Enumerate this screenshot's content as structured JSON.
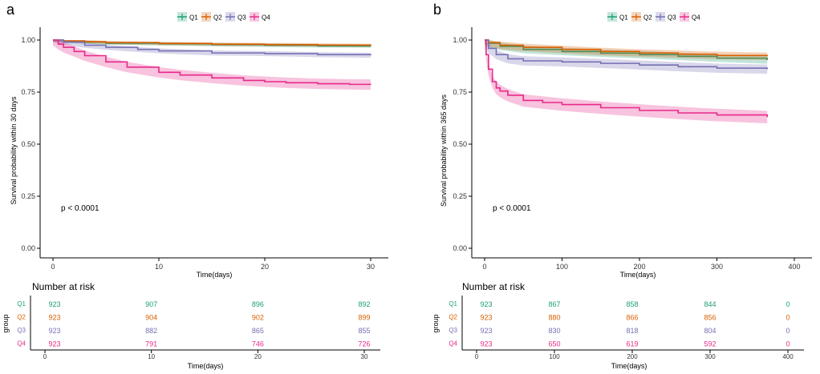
{
  "colors": {
    "Q1": "#1b9e77",
    "Q2": "#d95f02",
    "Q3": "#7570b3",
    "Q4": "#e7298a",
    "axis": "#000000"
  },
  "chart_data": [
    {
      "type": "line",
      "panel_label": "a",
      "title": "",
      "xlabel": "Time(days)",
      "ylabel": "Survival probability within 30 days",
      "xlim": [
        0,
        30
      ],
      "ylim": [
        0,
        1
      ],
      "x_ticks": [
        "0",
        "10",
        "20",
        "30"
      ],
      "y_ticks": [
        "0.00",
        "0.25",
        "0.50",
        "0.75",
        "1.00"
      ],
      "legend": [
        "Q1",
        "Q2",
        "Q3",
        "Q4"
      ],
      "legend_position": "top-center",
      "annotation": "p < 0.0001",
      "series": [
        {
          "name": "Q1",
          "x": [
            0,
            1,
            3,
            5,
            10,
            15,
            20,
            25,
            30
          ],
          "values": [
            1.0,
            0.995,
            0.99,
            0.985,
            0.982,
            0.978,
            0.975,
            0.972,
            0.971
          ],
          "ci": 0.008
        },
        {
          "name": "Q2",
          "x": [
            0,
            1,
            3,
            5,
            10,
            15,
            20,
            25,
            30
          ],
          "values": [
            1.0,
            0.996,
            0.992,
            0.988,
            0.984,
            0.98,
            0.978,
            0.976,
            0.974
          ],
          "ci": 0.008
        },
        {
          "name": "Q3",
          "x": [
            0,
            1,
            3,
            5,
            8,
            10,
            15,
            20,
            25,
            30
          ],
          "values": [
            1.0,
            0.99,
            0.975,
            0.965,
            0.955,
            0.948,
            0.938,
            0.935,
            0.93,
            0.927
          ],
          "ci": 0.012
        },
        {
          "name": "Q4",
          "x": [
            0,
            0.5,
            1,
            2,
            3,
            5,
            7,
            10,
            12,
            15,
            18,
            20,
            22,
            25,
            28,
            30
          ],
          "values": [
            1.0,
            0.98,
            0.965,
            0.945,
            0.925,
            0.895,
            0.87,
            0.845,
            0.832,
            0.818,
            0.806,
            0.8,
            0.795,
            0.79,
            0.787,
            0.786
          ],
          "ci": 0.025
        }
      ],
      "risk_table": {
        "title": "Number at risk",
        "xlabel": "Time(days)",
        "ylabel": "group",
        "times": [
          0,
          10,
          20,
          30
        ],
        "groups": [
          {
            "name": "Q1",
            "counts": [
              "923",
              "907",
              "896",
              "892"
            ]
          },
          {
            "name": "Q2",
            "counts": [
              "923",
              "904",
              "902",
              "899"
            ]
          },
          {
            "name": "Q3",
            "counts": [
              "923",
              "882",
              "865",
              "855"
            ]
          },
          {
            "name": "Q4",
            "counts": [
              "923",
              "791",
              "746",
              "726"
            ]
          }
        ],
        "x_ticks": [
          "0",
          "10",
          "20",
          "30"
        ]
      }
    },
    {
      "type": "line",
      "panel_label": "b",
      "title": "",
      "xlabel": "Time(days)",
      "ylabel": "Survival probability within 365 days",
      "xlim": [
        0,
        400
      ],
      "ylim": [
        0,
        1
      ],
      "x_ticks": [
        "0",
        "100",
        "200",
        "300",
        "400"
      ],
      "y_ticks": [
        "0.00",
        "0.25",
        "0.50",
        "0.75",
        "1.00"
      ],
      "legend": [
        "Q1",
        "Q2",
        "Q3",
        "Q4"
      ],
      "legend_position": "top-center",
      "annotation": "p < 0.0001",
      "series": [
        {
          "name": "Q1",
          "x": [
            0,
            5,
            20,
            50,
            100,
            150,
            200,
            250,
            300,
            365
          ],
          "values": [
            1.0,
            0.985,
            0.97,
            0.955,
            0.945,
            0.937,
            0.93,
            0.922,
            0.913,
            0.904
          ],
          "ci": 0.018
        },
        {
          "name": "Q2",
          "x": [
            0,
            5,
            20,
            50,
            100,
            150,
            200,
            250,
            300,
            365
          ],
          "values": [
            1.0,
            0.988,
            0.975,
            0.965,
            0.955,
            0.945,
            0.938,
            0.932,
            0.926,
            0.922
          ],
          "ci": 0.018
        },
        {
          "name": "Q3",
          "x": [
            0,
            5,
            15,
            30,
            50,
            100,
            150,
            200,
            250,
            300,
            365
          ],
          "values": [
            1.0,
            0.96,
            0.93,
            0.91,
            0.9,
            0.895,
            0.888,
            0.88,
            0.872,
            0.865,
            0.86
          ],
          "ci": 0.022
        },
        {
          "name": "Q4",
          "x": [
            0,
            2,
            5,
            10,
            15,
            20,
            30,
            50,
            75,
            100,
            150,
            200,
            250,
            300,
            365
          ],
          "values": [
            1.0,
            0.93,
            0.86,
            0.8,
            0.77,
            0.755,
            0.735,
            0.71,
            0.7,
            0.69,
            0.675,
            0.662,
            0.65,
            0.64,
            0.63
          ],
          "ci": 0.03
        }
      ],
      "risk_table": {
        "title": "Number at risk",
        "xlabel": "Time(days)",
        "ylabel": "group",
        "times": [
          0,
          100,
          200,
          300,
          400
        ],
        "groups": [
          {
            "name": "Q1",
            "counts": [
              "923",
              "867",
              "858",
              "844",
              "0"
            ]
          },
          {
            "name": "Q2",
            "counts": [
              "923",
              "880",
              "866",
              "856",
              "0"
            ]
          },
          {
            "name": "Q3",
            "counts": [
              "923",
              "830",
              "818",
              "804",
              "0"
            ]
          },
          {
            "name": "Q4",
            "counts": [
              "923",
              "650",
              "619",
              "592",
              "0"
            ]
          }
        ],
        "x_ticks": [
          "0",
          "100",
          "200",
          "300",
          "400"
        ]
      }
    }
  ]
}
